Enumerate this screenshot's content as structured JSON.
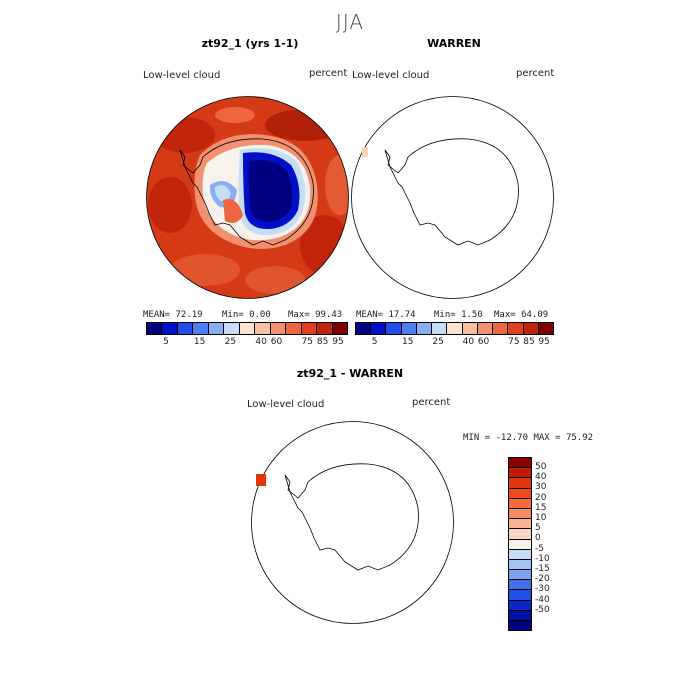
{
  "season": "JJA",
  "panels": [
    {
      "title": "zt92_1 (yrs 1-1)",
      "variable": "Low-level cloud",
      "units": "percent",
      "stats": {
        "mean": "MEAN=  72.19",
        "min": "Min=   0.00",
        "max": "Max=  99.43"
      }
    },
    {
      "title": "WARREN",
      "variable": "Low-level cloud",
      "units": "percent",
      "stats": {
        "mean": "MEAN=  17.74",
        "min": "Min=   1.50",
        "max": "Max=  64.09"
      }
    },
    {
      "title": "zt92_1 - WARREN",
      "variable": "Low-level cloud",
      "units": "percent",
      "stats": {
        "minmax": "MIN = -12.70 MAX =  75.92"
      }
    }
  ],
  "colorbar_abs": {
    "ticks": [
      "5",
      "15",
      "25",
      "40",
      "60",
      "75",
      "85",
      "95"
    ],
    "colors": [
      "#000080",
      "#0010c8",
      "#1f4fe6",
      "#4a7ff0",
      "#86aef2",
      "#c7dcf7",
      "#fde5d4",
      "#f8c0a0",
      "#f39070",
      "#ee6542",
      "#e0401f",
      "#c0250b",
      "#800000"
    ]
  },
  "colorbar_diff": {
    "ticks": [
      "50",
      "40",
      "30",
      "20",
      "15",
      "10",
      "5",
      "0",
      "-5",
      "-10",
      "-15",
      "-20",
      "-30",
      "-40",
      "-50"
    ],
    "colors": [
      "#8b0000",
      "#c01a00",
      "#e2340e",
      "#f04a1c",
      "#f56a3c",
      "#f68c62",
      "#f7b395",
      "#fad6c2",
      "#f6f1ea",
      "#c7dcf7",
      "#a6c4f3",
      "#7aa3f0",
      "#3f70ea",
      "#1f4fe6",
      "#0a28c8",
      "#0010a0",
      "#000080"
    ]
  }
}
